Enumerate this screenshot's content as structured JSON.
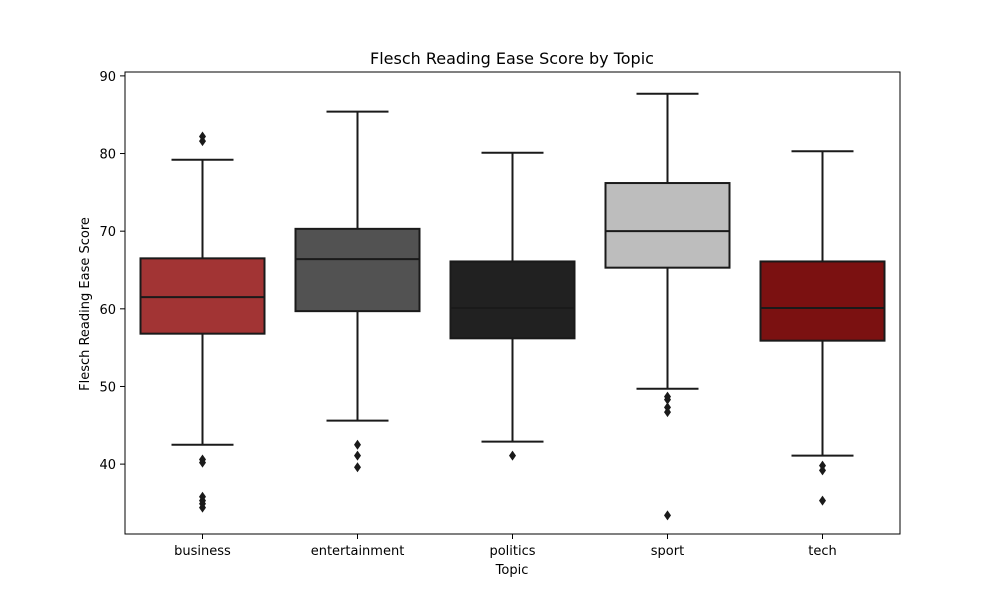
{
  "chart_data": {
    "type": "box",
    "title": "Flesch Reading Ease Score by Topic",
    "xlabel": "Topic",
    "ylabel": "Flesch Reading Ease Score",
    "ylim": [
      31,
      90.5
    ],
    "yticks": [
      40,
      50,
      60,
      70,
      80,
      90
    ],
    "grid": false,
    "categories": [
      "business",
      "entertainment",
      "politics",
      "sport",
      "tech"
    ],
    "boxes": [
      {
        "category": "business",
        "color": "#a23434",
        "whisker_low": 42.5,
        "q1": 56.8,
        "median": 61.5,
        "q3": 66.5,
        "whisker_high": 79.2,
        "outliers": [
          82.2,
          81.6,
          40.6,
          40.2,
          35.8,
          35.3,
          34.9,
          34.4
        ]
      },
      {
        "category": "entertainment",
        "color": "#525252",
        "whisker_low": 45.6,
        "q1": 59.7,
        "median": 66.4,
        "q3": 70.3,
        "whisker_high": 85.4,
        "outliers": [
          42.5,
          41.1,
          39.6
        ]
      },
      {
        "category": "politics",
        "color": "#212121",
        "whisker_low": 42.9,
        "q1": 56.2,
        "median": 60.1,
        "q3": 66.1,
        "whisker_high": 80.1,
        "outliers": [
          41.1
        ]
      },
      {
        "category": "sport",
        "color": "#bdbdbd",
        "whisker_low": 49.7,
        "q1": 65.3,
        "median": 70.0,
        "q3": 76.2,
        "whisker_high": 87.7,
        "outliers": [
          48.7,
          48.3,
          47.3,
          46.7,
          33.4
        ]
      },
      {
        "category": "tech",
        "color": "#7b1111",
        "whisker_low": 41.1,
        "q1": 55.9,
        "median": 60.1,
        "q3": 66.1,
        "whisker_high": 80.3,
        "outliers": [
          39.8,
          39.2,
          35.3
        ]
      }
    ]
  }
}
